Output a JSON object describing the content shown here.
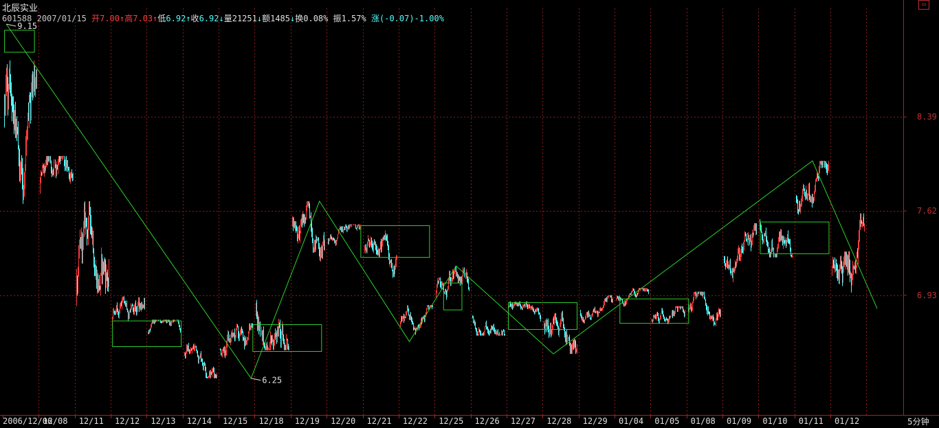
{
  "header": {
    "name": "北辰实业",
    "code": "601588",
    "date": "2007/01/15",
    "open_label": "开",
    "open": "7.00",
    "high_label": "高",
    "high": "7.03",
    "low_label": "低",
    "low": "6.92",
    "close_label": "收",
    "close": "6.92",
    "volume_label": "量",
    "volume": "21251",
    "amount_label": "额",
    "amount": "1485",
    "turnover_label": "换",
    "turnover": "0.08%",
    "amplitude_label": "振",
    "amplitude": "1.57%",
    "change_label": "涨",
    "change": "(-0.07)-1.00%"
  },
  "corner_icon": "window-restore-icon",
  "period_label": "5分钟",
  "colors": {
    "up": "#ff3c3c",
    "down": "#54fcfc",
    "zigzag": "#2cd22c",
    "box": "#2cd22c",
    "grid": "#8c1a1a",
    "axis": "#b02020"
  },
  "chart_data": {
    "type": "candlestick",
    "price_ticks": [
      8.39,
      7.62,
      6.93
    ],
    "price_tick_labels": [
      "8.39",
      "7.62",
      "6.93"
    ],
    "ylim": [
      5.95,
      9.28
    ],
    "x_labels": [
      "2006/12/06",
      "12/08",
      "12/11",
      "12/12",
      "12/13",
      "12/14",
      "12/15",
      "12/18",
      "12/19",
      "12/20",
      "12/21",
      "12/22",
      "12/25",
      "12/26",
      "12/27",
      "12/28",
      "12/29",
      "01/04",
      "01/05",
      "01/08",
      "01/09",
      "01/10",
      "01/11",
      "01/12"
    ],
    "zigzag": [
      {
        "day": 0.1,
        "price": 9.15
      },
      {
        "day": 6.9,
        "price": 6.25
      },
      {
        "day": 8.8,
        "price": 7.7
      },
      {
        "day": 11.3,
        "price": 6.55
      },
      {
        "day": 12.6,
        "price": 7.17
      },
      {
        "day": 15.3,
        "price": 6.45
      },
      {
        "day": 22.5,
        "price": 8.03
      },
      {
        "day": 24.3,
        "price": 6.82
      }
    ],
    "annotations": [
      {
        "text": "9.15",
        "day": 0.1,
        "price": 9.15
      },
      {
        "text": "6.25",
        "day": 6.9,
        "price": 6.25
      }
    ],
    "boxes": [
      {
        "day_start": 0.05,
        "day_end": 0.88,
        "price_low": 8.92,
        "price_high": 9.1
      },
      {
        "day_start": 3.05,
        "day_end": 4.96,
        "price_low": 6.51,
        "price_high": 6.72
      },
      {
        "day_start": 6.95,
        "day_end": 8.86,
        "price_low": 6.47,
        "price_high": 6.69
      },
      {
        "day_start": 9.95,
        "day_end": 11.86,
        "price_low": 7.24,
        "price_high": 7.5
      },
      {
        "day_start": 12.25,
        "day_end": 12.76,
        "price_low": 6.81,
        "price_high": 7.03
      },
      {
        "day_start": 14.05,
        "day_end": 15.96,
        "price_low": 6.65,
        "price_high": 6.87
      },
      {
        "day_start": 17.15,
        "day_end": 19.06,
        "price_low": 6.7,
        "price_high": 6.9
      },
      {
        "day_start": 21.05,
        "day_end": 22.96,
        "price_low": 7.27,
        "price_high": 7.53
      }
    ],
    "daily_ranges": [
      {
        "day": 0,
        "low": 7.67,
        "high": 9.15
      },
      {
        "day": 1,
        "low": 7.48,
        "high": 8.07
      },
      {
        "day": 2,
        "low": 6.55,
        "high": 7.7
      },
      {
        "day": 3,
        "low": 6.5,
        "high": 6.92
      },
      {
        "day": 4,
        "low": 6.5,
        "high": 6.73
      },
      {
        "day": 5,
        "low": 6.25,
        "high": 6.61
      },
      {
        "day": 6,
        "low": 6.25,
        "high": 6.7
      },
      {
        "day": 7,
        "low": 6.48,
        "high": 7.13
      },
      {
        "day": 8,
        "low": 7.08,
        "high": 7.7
      },
      {
        "day": 9,
        "low": 7.27,
        "high": 7.51
      },
      {
        "day": 10,
        "low": 7.02,
        "high": 7.49
      },
      {
        "day": 11,
        "low": 6.55,
        "high": 6.85
      },
      {
        "day": 12,
        "low": 6.77,
        "high": 7.17
      },
      {
        "day": 13,
        "low": 6.6,
        "high": 6.9
      },
      {
        "day": 14,
        "low": 6.65,
        "high": 6.88
      },
      {
        "day": 15,
        "low": 6.45,
        "high": 6.92
      },
      {
        "day": 16,
        "low": 6.7,
        "high": 6.93
      },
      {
        "day": 17,
        "low": 6.8,
        "high": 6.99
      },
      {
        "day": 18,
        "low": 6.58,
        "high": 6.84
      },
      {
        "day": 19,
        "low": 6.62,
        "high": 6.96
      },
      {
        "day": 20,
        "low": 7.0,
        "high": 7.52
      },
      {
        "day": 21,
        "low": 7.24,
        "high": 7.72
      },
      {
        "day": 22,
        "low": 7.5,
        "high": 8.03
      },
      {
        "day": 23,
        "low": 6.82,
        "high": 7.6
      }
    ]
  }
}
